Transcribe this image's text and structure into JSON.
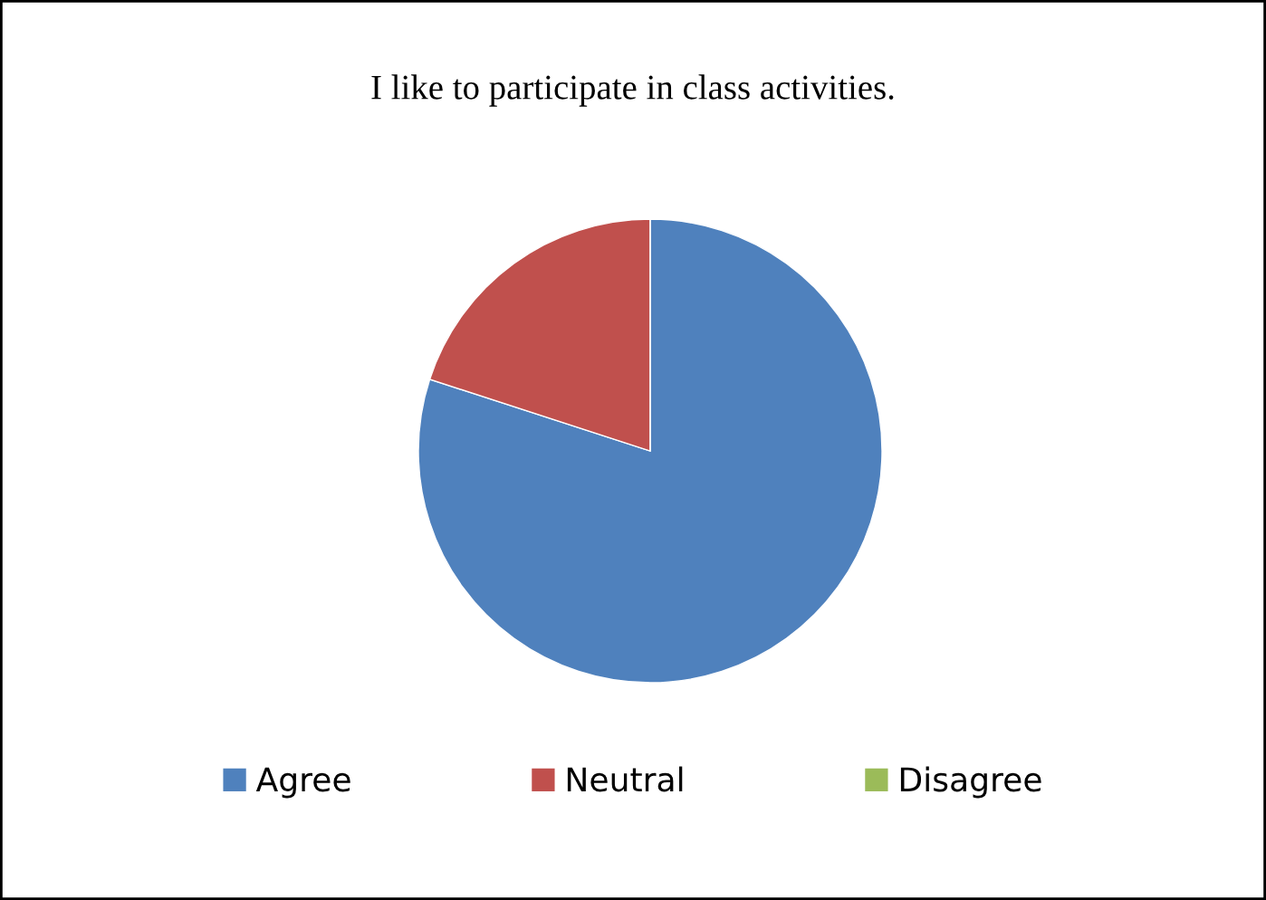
{
  "chart_data": {
    "type": "pie",
    "title": "I like to participate in class activities.",
    "categories": [
      "Agree",
      "Neutral",
      "Disagree"
    ],
    "values": [
      80,
      20,
      0
    ],
    "colors": [
      "#4f81bd",
      "#c0504d",
      "#9bbb59"
    ],
    "legend": "bottom"
  }
}
